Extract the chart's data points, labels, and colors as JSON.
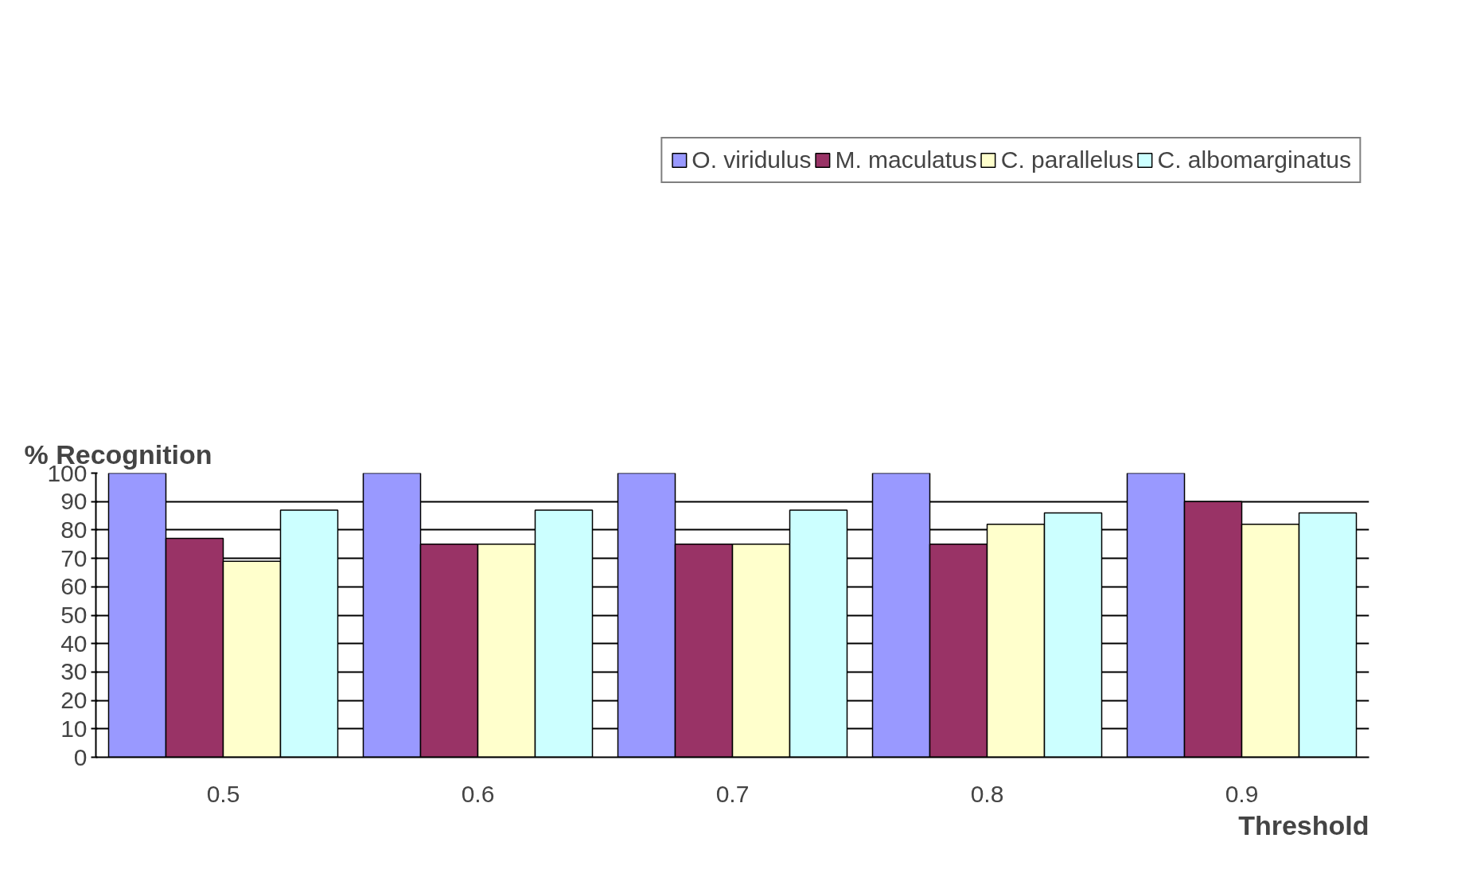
{
  "chart_data": {
    "type": "bar",
    "ylabel": "% Recognition",
    "xlabel": "Threshold",
    "categories": [
      "0.5",
      "0.6",
      "0.7",
      "0.8",
      "0.9"
    ],
    "series": [
      {
        "name": "O. viridulus",
        "color": "#9999ff",
        "values": [
          100,
          100,
          100,
          100,
          100
        ]
      },
      {
        "name": "M. maculatus",
        "color": "#993366",
        "values": [
          77,
          75,
          75,
          75,
          90
        ]
      },
      {
        "name": "C. parallelus",
        "color": "#ffffcc",
        "values": [
          69,
          75,
          75,
          82,
          82
        ]
      },
      {
        "name": "C. albomarginatus",
        "color": "#ccffff",
        "values": [
          87,
          87,
          87,
          86,
          86
        ]
      }
    ],
    "ylim": [
      0,
      100
    ],
    "yticks": [
      0,
      10,
      20,
      30,
      40,
      50,
      60,
      70,
      80,
      90,
      100
    ],
    "grid": "y",
    "legend": "top"
  }
}
